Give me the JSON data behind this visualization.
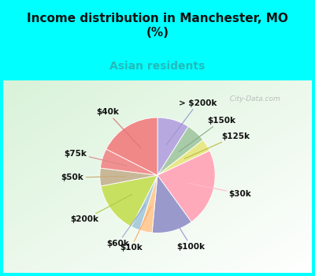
{
  "title": "Income distribution in Manchester, MO\n(%)",
  "subtitle": "Asian residents",
  "title_color": "#111111",
  "subtitle_color": "#22bbbb",
  "bg_color": "#00ffff",
  "watermark": "  City-Data.com",
  "labels": [
    "> $200k",
    "$150k",
    "$125k",
    "$30k",
    "$100k",
    "$10k",
    "$60k",
    "$200k",
    "$50k",
    "$75k",
    "$40k"
  ],
  "values": [
    9.0,
    5.5,
    3.5,
    22.0,
    11.5,
    3.5,
    2.5,
    14.5,
    5.0,
    5.5,
    17.5
  ],
  "pie_colors": [
    "#b8a8e0",
    "#a8cca8",
    "#e8e888",
    "#ffaabb",
    "#9999cc",
    "#ffcc99",
    "#aaccdd",
    "#c8e060",
    "#c8b898",
    "#f09090",
    "#f08888"
  ],
  "line_colors": [
    "#9999cc",
    "#88aa88",
    "#bbbb44",
    "#ffbbcc",
    "#9999cc",
    "#ffaa66",
    "#99aacc",
    "#aacc44",
    "#ccaa77",
    "#dd8888",
    "#dd7777"
  ],
  "label_fontsize": 7.5,
  "title_fontsize": 11,
  "subtitle_fontsize": 10
}
